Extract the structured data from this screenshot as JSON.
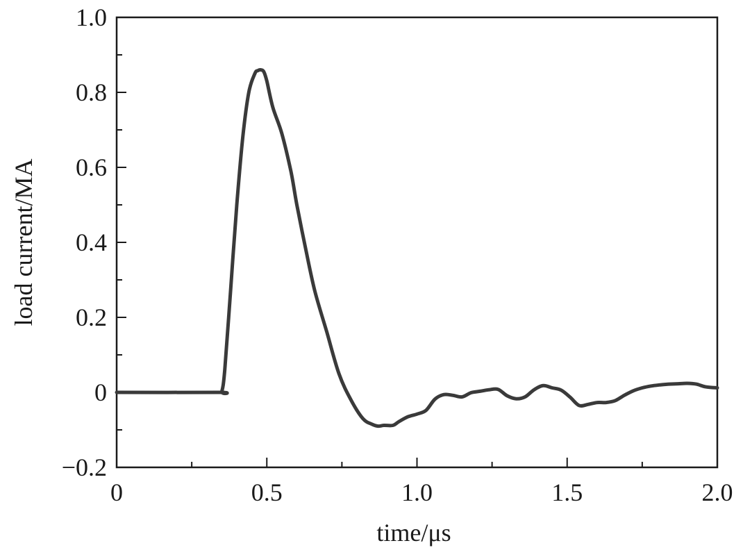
{
  "chart_data": {
    "type": "line",
    "title": "",
    "xlabel": "time/μs",
    "ylabel": "load current/MA",
    "xlim": [
      0,
      2.0
    ],
    "ylim": [
      -0.2,
      1.0
    ],
    "x_ticks": [
      {
        "value": 0,
        "label": "0"
      },
      {
        "value": 0.5,
        "label": "0.5"
      },
      {
        "value": 1.0,
        "label": "1.0"
      },
      {
        "value": 1.5,
        "label": "1.5"
      },
      {
        "value": 2.0,
        "label": "2.0"
      }
    ],
    "x_minor_ticks": [
      0.25,
      0.75,
      1.25,
      1.75
    ],
    "y_ticks": [
      {
        "value": -0.2,
        "label": "−0.2"
      },
      {
        "value": 0,
        "label": "0"
      },
      {
        "value": 0.2,
        "label": "0.2"
      },
      {
        "value": 0.4,
        "label": "0.4"
      },
      {
        "value": 0.6,
        "label": "0.6"
      },
      {
        "value": 0.8,
        "label": "0.8"
      },
      {
        "value": 1.0,
        "label": "1.0"
      }
    ],
    "y_minor_ticks": [
      -0.1,
      0.1,
      0.3,
      0.5,
      0.7,
      0.9
    ],
    "grid": false,
    "line_color": "#3a3a3a",
    "series": [
      {
        "x": [
          0,
          0.34,
          0.35,
          0.36,
          0.38,
          0.4,
          0.42,
          0.44,
          0.46,
          0.47,
          0.48,
          0.49,
          0.5,
          0.52,
          0.55,
          0.58,
          0.6,
          0.63,
          0.66,
          0.7,
          0.74,
          0.78,
          0.82,
          0.85,
          0.87,
          0.89,
          0.92,
          0.94,
          0.97,
          1.0,
          1.03,
          1.06,
          1.09,
          1.12,
          1.15,
          1.18,
          1.21,
          1.24,
          1.27,
          1.3,
          1.33,
          1.36,
          1.39,
          1.42,
          1.45,
          1.48,
          1.51,
          1.54,
          1.57,
          1.6,
          1.63,
          1.66,
          1.69,
          1.72,
          1.75,
          1.78,
          1.81,
          1.84,
          1.87,
          1.9,
          1.93,
          1.96,
          2.0
        ],
        "y": [
          0,
          0,
          0.002,
          0.06,
          0.28,
          0.5,
          0.68,
          0.8,
          0.85,
          0.858,
          0.86,
          0.855,
          0.83,
          0.76,
          0.69,
          0.59,
          0.5,
          0.38,
          0.27,
          0.16,
          0.05,
          -0.02,
          -0.07,
          -0.085,
          -0.09,
          -0.088,
          -0.088,
          -0.078,
          -0.065,
          -0.058,
          -0.048,
          -0.018,
          -0.006,
          -0.008,
          -0.012,
          -0.001,
          0.003,
          0.007,
          0.008,
          -0.009,
          -0.017,
          -0.012,
          0.007,
          0.018,
          0.012,
          0.006,
          -0.013,
          -0.035,
          -0.032,
          -0.027,
          -0.027,
          -0.022,
          -0.008,
          0.004,
          0.012,
          0.017,
          0.02,
          0.022,
          0.023,
          0.024,
          0.022,
          0.015,
          0.012
        ]
      }
    ]
  }
}
